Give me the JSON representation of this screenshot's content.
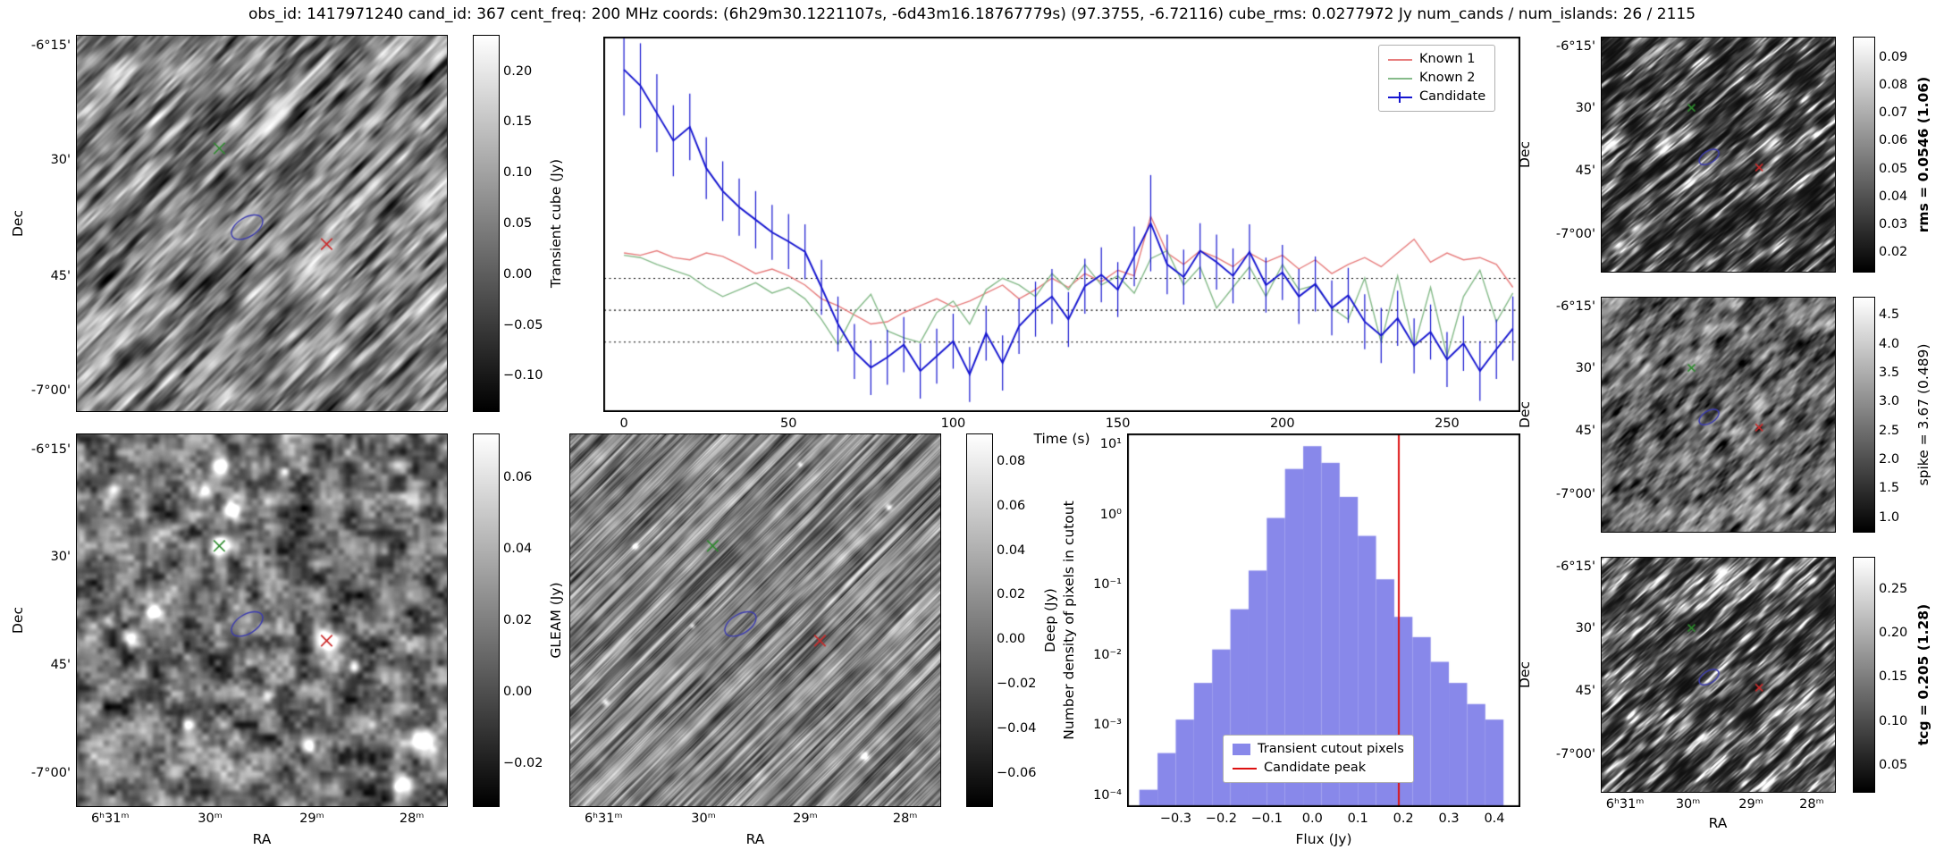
{
  "title": "obs_id: 1417971240 cand_id: 367 cent_freq: 200 MHz coords: (6h29m30.1221107s, -6d43m16.18767779s) (97.3755, -6.72116) cube_rms: 0.0277972 Jy num_cands / num_islands: 26 / 2115",
  "sky_axes": {
    "dec_label": "Dec",
    "ra_label": "RA",
    "dec_ticks": [
      "-6°15'",
      "30'",
      "45'",
      "-7°00'"
    ],
    "ra_ticks": [
      "6ʰ31ᵐ",
      "30ᵐ",
      "29ᵐ",
      "28ᵐ"
    ]
  },
  "cutouts": {
    "transient": {
      "colorbar_label": "Transient cube (Jy)",
      "colorbar_ticks": [
        "0.20",
        "0.15",
        "0.10",
        "0.05",
        "0.00",
        "−0.05",
        "−0.10"
      ],
      "colorbar_tick_values": [
        0.2,
        0.15,
        0.1,
        0.05,
        0.0,
        -0.05,
        -0.1
      ],
      "colorbar_range": [
        -0.135,
        0.235
      ]
    },
    "gleam": {
      "colorbar_label": "GLEAM (Jy)",
      "colorbar_ticks": [
        "0.06",
        "0.04",
        "0.02",
        "0.00",
        "−0.02"
      ],
      "colorbar_tick_values": [
        0.06,
        0.04,
        0.02,
        0.0,
        -0.02
      ],
      "colorbar_range": [
        -0.032,
        0.072
      ]
    },
    "deep": {
      "colorbar_label": "Deep (Jy)",
      "colorbar_ticks": [
        "0.08",
        "0.06",
        "0.04",
        "0.02",
        "0.00",
        "−0.02",
        "−0.04",
        "−0.06"
      ],
      "colorbar_tick_values": [
        0.08,
        0.06,
        0.04,
        0.02,
        0.0,
        -0.02,
        -0.04,
        -0.06
      ],
      "colorbar_range": [
        -0.075,
        0.092
      ]
    },
    "rms": {
      "colorbar_label": "rms = 0.0546 (1.06)",
      "colorbar_ticks": [
        "0.09",
        "0.08",
        "0.07",
        "0.06",
        "0.05",
        "0.04",
        "0.03",
        "0.02"
      ],
      "colorbar_tick_values": [
        0.09,
        0.08,
        0.07,
        0.06,
        0.05,
        0.04,
        0.03,
        0.02
      ],
      "colorbar_range": [
        0.013,
        0.097
      ]
    },
    "spike": {
      "colorbar_label": "spike = 3.67 (0.489)",
      "colorbar_ticks": [
        "4.5",
        "4.0",
        "3.5",
        "3.0",
        "2.5",
        "2.0",
        "1.5",
        "1.0"
      ],
      "colorbar_tick_values": [
        4.5,
        4.0,
        3.5,
        3.0,
        2.5,
        2.0,
        1.5,
        1.0
      ],
      "colorbar_range": [
        0.75,
        4.8
      ]
    },
    "tcg": {
      "colorbar_label": "tcg = 0.205 (1.28)",
      "colorbar_ticks": [
        "0.25",
        "0.20",
        "0.15",
        "0.10",
        "0.05"
      ],
      "colorbar_tick_values": [
        0.25,
        0.2,
        0.15,
        0.1,
        0.05
      ],
      "colorbar_range": [
        0.02,
        0.285
      ]
    },
    "markers": {
      "green_cross": {
        "x": 0.385,
        "y": 0.3,
        "color": "#2e8b2e"
      },
      "red_cross": {
        "x": 0.675,
        "y": 0.555,
        "color": "#cc2a2a"
      },
      "blue_ellipse": {
        "x": 0.46,
        "y": 0.51,
        "color": "#3b3bb0"
      }
    }
  },
  "chart_data": [
    {
      "type": "line",
      "title": "",
      "xlabel": "Time (s)",
      "ylabel": "",
      "xlim": [
        -6,
        272
      ],
      "ylim": [
        -0.088,
        0.238
      ],
      "x_ticks": [
        "0",
        "50",
        "100",
        "150",
        "200",
        "250"
      ],
      "x_tick_values": [
        0,
        50,
        100,
        150,
        200,
        250
      ],
      "threshold_lines": [
        0.0278,
        0.0,
        -0.0278
      ],
      "legend_loc": "upper right",
      "x": [
        0,
        5,
        10,
        15,
        20,
        25,
        30,
        35,
        40,
        45,
        50,
        55,
        60,
        65,
        70,
        75,
        80,
        85,
        90,
        95,
        100,
        105,
        110,
        115,
        120,
        125,
        130,
        135,
        140,
        145,
        150,
        155,
        160,
        165,
        170,
        175,
        180,
        185,
        190,
        195,
        200,
        205,
        210,
        215,
        220,
        225,
        230,
        235,
        240,
        245,
        250,
        255,
        260,
        265,
        270
      ],
      "series": [
        {
          "name": "Known 1",
          "color": "#e77c7c",
          "y": [
            0.05,
            0.048,
            0.052,
            0.046,
            0.044,
            0.05,
            0.047,
            0.04,
            0.032,
            0.036,
            0.03,
            0.022,
            0.01,
            0.004,
            -0.004,
            -0.012,
            -0.01,
            -0.002,
            0.004,
            0.01,
            0.003,
            0.008,
            0.015,
            0.022,
            0.01,
            0.018,
            0.028,
            0.02,
            0.032,
            0.025,
            0.035,
            0.03,
            0.082,
            0.05,
            0.04,
            0.052,
            0.046,
            0.038,
            0.05,
            0.042,
            0.048,
            0.036,
            0.044,
            0.032,
            0.04,
            0.046,
            0.038,
            0.05,
            0.062,
            0.042,
            0.05,
            0.044,
            0.046,
            0.04,
            0.02
          ]
        },
        {
          "name": "Known 2",
          "color": "#86bb8a",
          "y": [
            0.048,
            0.046,
            0.04,
            0.035,
            0.03,
            0.02,
            0.012,
            0.018,
            0.024,
            0.015,
            0.02,
            0.01,
            -0.008,
            -0.03,
            -0.002,
            0.014,
            -0.018,
            -0.024,
            -0.028,
            -0.002,
            0.008,
            -0.012,
            0.018,
            0.028,
            0.022,
            0.012,
            0.032,
            0.018,
            0.04,
            0.022,
            0.03,
            0.015,
            0.045,
            0.052,
            0.022,
            0.038,
            0.002,
            0.02,
            0.038,
            0.012,
            0.04,
            0.018,
            0.022,
            0.002,
            -0.008,
            0.028,
            -0.028,
            0.03,
            -0.032,
            0.02,
            -0.04,
            0.012,
            0.035,
            -0.01,
            0.015
          ]
        },
        {
          "name": "Candidate",
          "color": "#1515d0",
          "y": [
            0.21,
            0.196,
            0.172,
            0.148,
            0.16,
            0.124,
            0.104,
            0.09,
            0.079,
            0.068,
            0.06,
            0.051,
            0.02,
            -0.012,
            -0.036,
            -0.05,
            -0.041,
            -0.03,
            -0.053,
            -0.04,
            -0.027,
            -0.056,
            -0.02,
            -0.046,
            -0.014,
            0.001,
            0.012,
            -0.008,
            0.021,
            0.031,
            0.018,
            0.047,
            0.076,
            0.04,
            0.029,
            0.052,
            0.042,
            0.03,
            0.051,
            0.022,
            0.033,
            0.012,
            0.023,
            0.002,
            0.013,
            -0.01,
            -0.022,
            -0.007,
            -0.031,
            -0.019,
            -0.043,
            -0.029,
            -0.053,
            -0.034,
            -0.016
          ],
          "yerr": [
            0.04,
            0.037,
            0.034,
            0.031,
            0.029,
            0.027,
            0.026,
            0.025,
            0.025,
            0.024,
            0.024,
            0.024,
            0.024,
            0.024,
            0.024,
            0.024,
            0.024,
            0.024,
            0.024,
            0.024,
            0.024,
            0.024,
            0.024,
            0.024,
            0.024,
            0.024,
            0.024,
            0.024,
            0.024,
            0.024,
            0.024,
            0.026,
            0.042,
            0.026,
            0.024,
            0.024,
            0.024,
            0.024,
            0.024,
            0.024,
            0.024,
            0.024,
            0.024,
            0.024,
            0.024,
            0.024,
            0.024,
            0.024,
            0.024,
            0.024,
            0.024,
            0.024,
            0.026,
            0.026,
            0.028
          ]
        }
      ]
    },
    {
      "type": "bar",
      "title": "",
      "xlabel": "Flux (Jy)",
      "ylabel": "Number density of pixels in cutout",
      "yscale": "log",
      "xlim": [
        -0.405,
        0.455
      ],
      "ylim": [
        7e-05,
        14
      ],
      "x_ticks": [
        "−0.3",
        "−0.2",
        "−0.1",
        "0.0",
        "0.1",
        "0.2",
        "0.3",
        "0.4"
      ],
      "x_tick_values": [
        -0.3,
        -0.2,
        -0.1,
        0.0,
        0.1,
        0.2,
        0.3,
        0.4
      ],
      "y_ticks": [
        "10¹",
        "10⁰",
        "10⁻¹",
        "10⁻²",
        "10⁻³",
        "10⁻⁴"
      ],
      "y_tick_values": [
        10,
        1,
        0.1,
        0.01,
        0.001,
        0.0001
      ],
      "bar_color": "#8888ea",
      "series_label": "Transient cutout pixels",
      "bin_edges": [
        -0.38,
        -0.34,
        -0.3,
        -0.26,
        -0.22,
        -0.18,
        -0.14,
        -0.1,
        -0.06,
        -0.02,
        0.02,
        0.06,
        0.1,
        0.14,
        0.18,
        0.22,
        0.26,
        0.3,
        0.34,
        0.38,
        0.42
      ],
      "values": [
        0.00012,
        0.0004,
        0.0012,
        0.004,
        0.012,
        0.045,
        0.16,
        0.9,
        4.5,
        9.5,
        5.5,
        1.8,
        0.5,
        0.12,
        0.035,
        0.018,
        0.008,
        0.004,
        0.002,
        0.0012
      ],
      "vline": {
        "x": 0.19,
        "color": "#dd1111",
        "label": "Candidate peak"
      }
    }
  ]
}
